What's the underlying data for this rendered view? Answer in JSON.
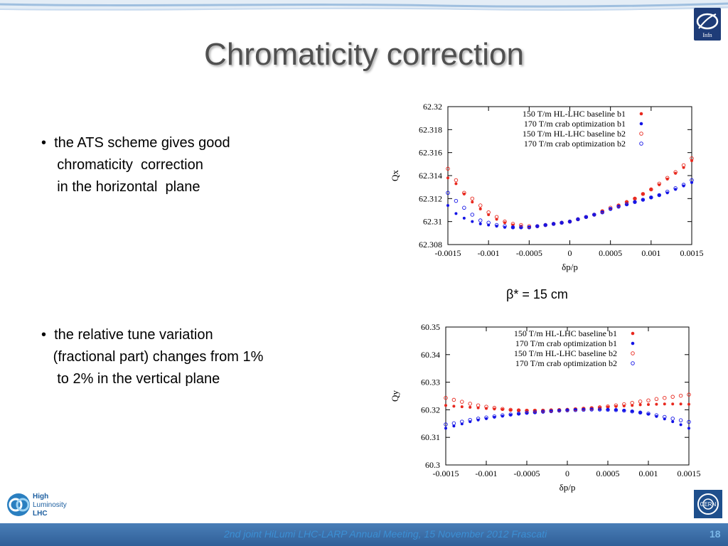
{
  "slide": {
    "title": "Chromaticity correction",
    "bullets": [
      {
        "lines": [
          "the ATS scheme gives good",
          " chromaticity  correction",
          " in the horizontal  plane"
        ]
      },
      {
        "lines": [
          "the relative tune variation",
          "(fractional part) changes from 1%",
          " to 2% in the vertical plane"
        ]
      }
    ],
    "beta_label": "β* = 15 cm",
    "footer": "2nd joint HiLumi LHC-LARP Annual Meeting, 15 November 2012 Frascati",
    "page_number": "18",
    "logos": {
      "top_right": {
        "text": "Infn",
        "name": "institute-logo"
      },
      "bottom_left": {
        "lines": [
          "High",
          "Luminosity",
          "LHC"
        ]
      },
      "bottom_right": {
        "text": "CERN"
      }
    }
  },
  "chart_data": [
    {
      "type": "scatter",
      "xlabel": "δp/p",
      "ylabel": "Qx",
      "xlim": [
        -0.0015,
        0.0015
      ],
      "ylim": [
        62.308,
        62.32
      ],
      "xticks": [
        -0.0015,
        -0.001,
        -0.0005,
        0,
        0.0005,
        0.001,
        0.0015
      ],
      "xtick_labels": [
        "-0.0015",
        "-0.001",
        "-0.0005",
        "0",
        "0.0005",
        "0.001",
        "0.0015"
      ],
      "yticks": [
        62.308,
        62.31,
        62.312,
        62.314,
        62.316,
        62.318,
        62.32
      ],
      "ytick_labels": [
        "62.308",
        "62.31",
        "62.312",
        "62.314",
        "62.316",
        "62.318",
        "62.32"
      ],
      "legend_position": "top-right",
      "series": [
        {
          "name": "150 T/m HL-LHC baseline b1",
          "color": "#e8281e",
          "marker": "filled",
          "x": [
            -0.0015,
            -0.0014,
            -0.0013,
            -0.0012,
            -0.0011,
            -0.001,
            -0.0009,
            -0.0008,
            -0.0007,
            -0.0006,
            -0.0005,
            -0.0004,
            -0.0003,
            -0.0002,
            -0.0001,
            0,
            0.0001,
            0.0002,
            0.0003,
            0.0004,
            0.0005,
            0.0006,
            0.0007,
            0.0008,
            0.0009,
            0.001,
            0.0011,
            0.0012,
            0.0013,
            0.0014,
            0.0015
          ],
          "y": [
            62.3138,
            62.3133,
            62.3124,
            62.3117,
            62.3111,
            62.3106,
            62.3102,
            62.3099,
            62.3097,
            62.3096,
            62.3095,
            62.3096,
            62.3097,
            62.3098,
            62.3099,
            62.31,
            62.3102,
            62.3104,
            62.3106,
            62.3109,
            62.3111,
            62.3114,
            62.3117,
            62.312,
            62.3124,
            62.3128,
            62.3132,
            62.3137,
            62.3142,
            62.3147,
            62.3153
          ]
        },
        {
          "name": "170 T/m crab optimization b1",
          "color": "#1414e6",
          "marker": "filled",
          "x": [
            -0.0015,
            -0.0014,
            -0.0013,
            -0.0012,
            -0.0011,
            -0.001,
            -0.0009,
            -0.0008,
            -0.0007,
            -0.0006,
            -0.0005,
            -0.0004,
            -0.0003,
            -0.0002,
            -0.0001,
            0,
            0.0001,
            0.0002,
            0.0003,
            0.0004,
            0.0005,
            0.0006,
            0.0007,
            0.0008,
            0.0009,
            0.001,
            0.0011,
            0.0012,
            0.0013,
            0.0014,
            0.0015
          ],
          "y": [
            62.3114,
            62.3107,
            62.3103,
            62.31,
            62.3098,
            62.3097,
            62.3096,
            62.3095,
            62.3095,
            62.3095,
            62.3095,
            62.3096,
            62.3097,
            62.3098,
            62.3099,
            62.31,
            62.3102,
            62.3104,
            62.3106,
            62.3108,
            62.3111,
            62.3113,
            62.3115,
            62.3117,
            62.3119,
            62.3121,
            62.3123,
            62.3125,
            62.3128,
            62.3131,
            62.3134
          ]
        },
        {
          "name": "150 T/m HL-LHC baseline b2",
          "color": "#e8281e",
          "marker": "open",
          "x": [
            -0.0015,
            -0.0014,
            -0.0013,
            -0.0012,
            -0.0011,
            -0.001,
            -0.0009,
            -0.0008,
            -0.0007,
            -0.0006,
            -0.0005,
            -0.0004,
            -0.0003,
            -0.0002,
            -0.0001,
            0,
            0.0001,
            0.0002,
            0.0003,
            0.0004,
            0.0005,
            0.0006,
            0.0007,
            0.0008,
            0.0009,
            0.001,
            0.0011,
            0.0012,
            0.0013,
            0.0014,
            0.0015
          ],
          "y": [
            62.3146,
            62.3136,
            62.3125,
            62.312,
            62.3114,
            62.3108,
            62.3104,
            62.31,
            62.3098,
            62.3097,
            62.3096,
            62.3096,
            62.3097,
            62.3098,
            62.3099,
            62.31,
            62.3102,
            62.3104,
            62.3106,
            62.3109,
            62.3112,
            62.3114,
            62.3117,
            62.312,
            62.3124,
            62.3128,
            62.3133,
            62.3138,
            62.3143,
            62.3149,
            62.3155
          ]
        },
        {
          "name": "170 T/m crab optimization b2",
          "color": "#1414e6",
          "marker": "open",
          "x": [
            -0.0015,
            -0.0014,
            -0.0013,
            -0.0012,
            -0.0011,
            -0.001,
            -0.0009,
            -0.0008,
            -0.0007,
            -0.0006,
            -0.0005,
            -0.0004,
            -0.0003,
            -0.0002,
            -0.0001,
            0,
            0.0001,
            0.0002,
            0.0003,
            0.0004,
            0.0005,
            0.0006,
            0.0007,
            0.0008,
            0.0009,
            0.001,
            0.0011,
            0.0012,
            0.0013,
            0.0014,
            0.0015
          ],
          "y": [
            62.3125,
            62.3118,
            62.3112,
            62.3106,
            62.3101,
            62.3099,
            62.3097,
            62.3096,
            62.3095,
            62.3095,
            62.3095,
            62.3096,
            62.3097,
            62.3098,
            62.3099,
            62.31,
            62.3102,
            62.3104,
            62.3106,
            62.3108,
            62.3111,
            62.3113,
            62.3115,
            62.3117,
            62.3119,
            62.3121,
            62.3123,
            62.3126,
            62.3129,
            62.3132,
            62.3136
          ]
        }
      ]
    },
    {
      "type": "scatter",
      "xlabel": "δp/p",
      "ylabel": "Qy",
      "xlim": [
        -0.0015,
        0.0015
      ],
      "ylim": [
        60.3,
        60.35
      ],
      "xticks": [
        -0.0015,
        -0.001,
        -0.0005,
        0,
        0.0005,
        0.001,
        0.0015
      ],
      "xtick_labels": [
        "-0.0015",
        "-0.001",
        "-0.0005",
        "0",
        "0.0005",
        "0.001",
        "0.0015"
      ],
      "yticks": [
        60.3,
        60.31,
        60.32,
        60.33,
        60.34,
        60.35
      ],
      "ytick_labels": [
        "60.3",
        "60.31",
        "60.32",
        "60.33",
        "60.34",
        "60.35"
      ],
      "legend_position": "top-right",
      "series": [
        {
          "name": "150 T/m HL-LHC baseline b1",
          "color": "#e8281e",
          "marker": "filled",
          "x": [
            -0.0015,
            -0.0014,
            -0.0013,
            -0.0012,
            -0.0011,
            -0.001,
            -0.0009,
            -0.0008,
            -0.0007,
            -0.0006,
            -0.0005,
            -0.0004,
            -0.0003,
            -0.0002,
            -0.0001,
            0,
            0.0001,
            0.0002,
            0.0003,
            0.0004,
            0.0005,
            0.0006,
            0.0007,
            0.0008,
            0.0009,
            0.001,
            0.0011,
            0.0012,
            0.0013,
            0.0014,
            0.0015
          ],
          "y": [
            60.3216,
            60.3213,
            60.3211,
            60.3209,
            60.3207,
            60.3205,
            60.3203,
            60.3201,
            60.3199,
            60.3198,
            60.3197,
            60.3197,
            60.3197,
            60.3198,
            60.3199,
            60.32,
            60.3202,
            60.3204,
            60.3206,
            60.3208,
            60.321,
            60.3212,
            60.3214,
            60.3216,
            60.3218,
            60.3219,
            60.322,
            60.3221,
            60.3221,
            60.3221,
            60.322
          ]
        },
        {
          "name": "170 T/m crab optimization b1",
          "color": "#1414e6",
          "marker": "filled",
          "x": [
            -0.0015,
            -0.0014,
            -0.0013,
            -0.0012,
            -0.0011,
            -0.001,
            -0.0009,
            -0.0008,
            -0.0007,
            -0.0006,
            -0.0005,
            -0.0004,
            -0.0003,
            -0.0002,
            -0.0001,
            0,
            0.0001,
            0.0002,
            0.0003,
            0.0004,
            0.0005,
            0.0006,
            0.0007,
            0.0008,
            0.0009,
            0.001,
            0.0011,
            0.0012,
            0.0013,
            0.0014,
            0.0015
          ],
          "y": [
            60.3133,
            60.3141,
            60.3149,
            60.3157,
            60.3163,
            60.3168,
            60.3173,
            60.3177,
            60.3181,
            60.3185,
            60.3188,
            60.319,
            60.3192,
            60.3194,
            60.3196,
            60.3198,
            60.32,
            60.3201,
            60.3202,
            60.3202,
            60.3201,
            60.32,
            60.3198,
            60.3195,
            60.319,
            60.3184,
            60.3176,
            60.3167,
            60.3157,
            60.3146,
            60.3133
          ]
        },
        {
          "name": "150 T/m HL-LHC baseline b2",
          "color": "#e8281e",
          "marker": "open",
          "x": [
            -0.0015,
            -0.0014,
            -0.0013,
            -0.0012,
            -0.0011,
            -0.001,
            -0.0009,
            -0.0008,
            -0.0007,
            -0.0006,
            -0.0005,
            -0.0004,
            -0.0003,
            -0.0002,
            -0.0001,
            0,
            0.0001,
            0.0002,
            0.0003,
            0.0004,
            0.0005,
            0.0006,
            0.0007,
            0.0008,
            0.0009,
            0.001,
            0.0011,
            0.0012,
            0.0013,
            0.0014,
            0.0015
          ],
          "y": [
            60.3243,
            60.3236,
            60.3229,
            60.3222,
            60.3216,
            60.3211,
            60.3207,
            60.3203,
            60.32,
            60.3198,
            60.3197,
            60.3197,
            60.3197,
            60.3198,
            60.3199,
            60.32,
            60.3202,
            60.3204,
            60.3206,
            60.3209,
            60.3212,
            60.3216,
            60.322,
            60.3225,
            60.323,
            60.3234,
            60.3239,
            60.3243,
            60.3247,
            60.3251,
            60.3255
          ]
        },
        {
          "name": "170 T/m crab optimization b2",
          "color": "#1414e6",
          "marker": "open",
          "x": [
            -0.0015,
            -0.0014,
            -0.0013,
            -0.0012,
            -0.0011,
            -0.001,
            -0.0009,
            -0.0008,
            -0.0007,
            -0.0006,
            -0.0005,
            -0.0004,
            -0.0003,
            -0.0002,
            -0.0001,
            0,
            0.0001,
            0.0002,
            0.0003,
            0.0004,
            0.0005,
            0.0006,
            0.0007,
            0.0008,
            0.0009,
            0.001,
            0.0011,
            0.0012,
            0.0013,
            0.0014,
            0.0015
          ],
          "y": [
            60.3147,
            60.3151,
            60.3157,
            60.3163,
            60.3168,
            60.3172,
            60.3176,
            60.318,
            60.3183,
            60.3186,
            60.3189,
            60.3191,
            60.3193,
            60.3195,
            60.3197,
            60.3198,
            60.3199,
            60.32,
            60.3201,
            60.3201,
            60.32,
            60.3199,
            60.3197,
            60.3194,
            60.319,
            60.3186,
            60.318,
            60.3174,
            60.3168,
            60.3162,
            60.3156
          ]
        }
      ]
    }
  ]
}
